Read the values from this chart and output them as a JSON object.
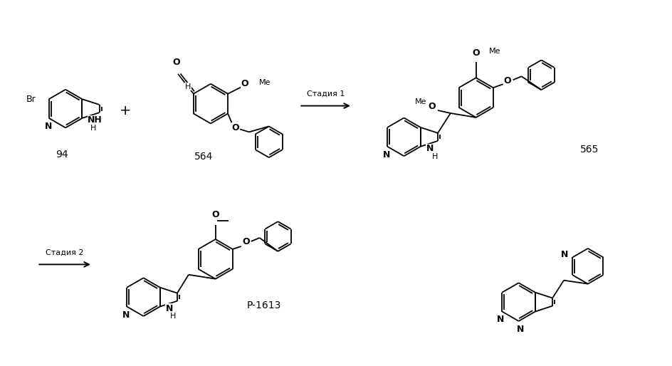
{
  "bg": "#ffffff",
  "lc": "#000000",
  "figw": 9.44,
  "figh": 5.14,
  "dpi": 100,
  "bond_lw": 1.3,
  "font_size_atom": 9,
  "font_size_label": 10,
  "font_size_small": 8,
  "stage1": "Стадия 1",
  "stage2": "Стадия 2",
  "lbl_94": "94",
  "lbl_564": "564",
  "lbl_565": "565",
  "lbl_p1613": "P-1613"
}
